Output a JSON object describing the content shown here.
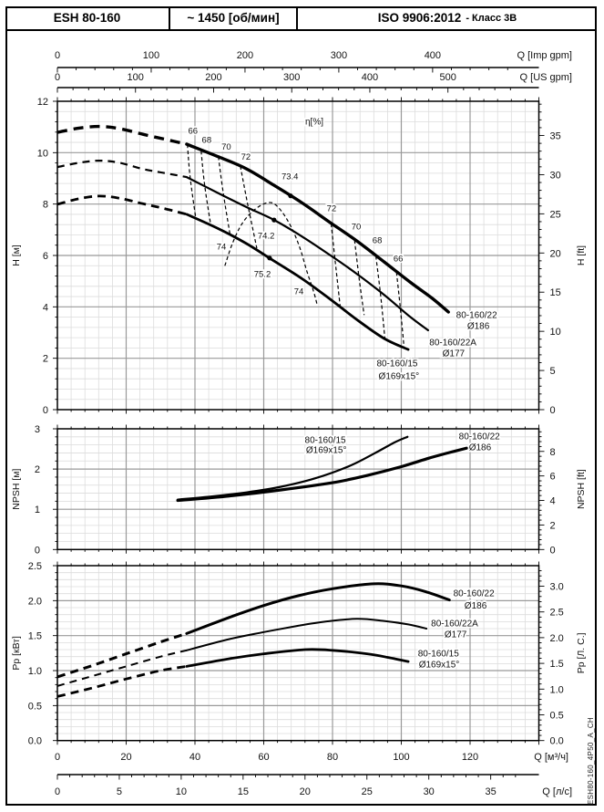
{
  "header": {
    "model": "ESH 80-160",
    "speed": "~ 1450 [об/мин]",
    "standard": "ISO 9906:2012",
    "standard_class": "- Класс 3В"
  },
  "side_text": "ESH80-160_4P50_A_CH",
  "colors": {
    "curve": "#000000",
    "grid_minor": "#dcdcdc",
    "grid_major": "#999999",
    "border": "#000000",
    "text": "#111111",
    "background": "#ffffff"
  },
  "axes": {
    "top_imp": {
      "title": "Q [Imp gpm]",
      "labels": [
        "0",
        "100",
        "200",
        "300",
        "400"
      ]
    },
    "top_us": {
      "title": "Q [US gpm]",
      "labels": [
        "0",
        "100",
        "200",
        "300",
        "400",
        "500"
      ]
    },
    "bottom_m3h": {
      "title": "Q [м³/ч]",
      "labels": [
        "0",
        "20",
        "40",
        "60",
        "80",
        "100",
        "120"
      ]
    },
    "bottom_ls": {
      "title": "Q [л/с]",
      "labels": [
        "0",
        "5",
        "10",
        "15",
        "20",
        "25",
        "30",
        "35"
      ]
    }
  },
  "chart_data": [
    {
      "type": "line",
      "name": "head-curve-chart",
      "ylabel_left": "H [м]",
      "ylabel_right": "H [ft]",
      "xlabel": "Q [м³/ч]",
      "xlim": [
        0,
        140
      ],
      "ylim": [
        0,
        12
      ],
      "yticks_left": [
        "0",
        "2",
        "4",
        "6",
        "8",
        "10",
        "12"
      ],
      "yticks_right": [
        "0",
        "5",
        "10",
        "15",
        "20",
        "25",
        "30",
        "35"
      ],
      "right_factor": 0.3048,
      "eta_axis_label": {
        "text": "η[%]",
        "q": 74.7,
        "v": 11.22
      },
      "series": [
        {
          "name": "80-160/22 Ø186",
          "width": 3.4,
          "dash": "11 7",
          "dashed": [
            [
              0,
              10.79
            ],
            [
              6,
              10.95
            ],
            [
              12,
              11.02
            ],
            [
              18,
              10.94
            ],
            [
              25,
              10.71
            ],
            [
              31,
              10.53
            ],
            [
              37.6,
              10.33
            ]
          ],
          "solid": [
            [
              37.6,
              10.33
            ],
            [
              47,
              9.83
            ],
            [
              55,
              9.37
            ],
            [
              63,
              8.73
            ],
            [
              71,
              8.06
            ],
            [
              79,
              7.31
            ],
            [
              87,
              6.57
            ],
            [
              95,
              5.75
            ],
            [
              102.5,
              4.97
            ],
            [
              109,
              4.33
            ],
            [
              113.7,
              3.8
            ]
          ]
        },
        {
          "name": "80-160/22A Ø177",
          "width": 2.2,
          "dash": "8 6",
          "dashed": [
            [
              0,
              9.44
            ],
            [
              6,
              9.6
            ],
            [
              12,
              9.69
            ],
            [
              18,
              9.61
            ],
            [
              25,
              9.36
            ],
            [
              31,
              9.21
            ],
            [
              37.6,
              9.05
            ]
          ],
          "solid": [
            [
              37.6,
              9.05
            ],
            [
              47,
              8.41
            ],
            [
              55,
              7.88
            ],
            [
              63,
              7.38
            ],
            [
              71,
              6.75
            ],
            [
              79,
              6.04
            ],
            [
              87,
              5.29
            ],
            [
              95,
              4.47
            ],
            [
              102.5,
              3.62
            ],
            [
              107.8,
              3.09
            ]
          ]
        },
        {
          "name": "80-160/15 Ø169x15°",
          "width": 2.8,
          "dash": "9 6",
          "dashed": [
            [
              0,
              7.99
            ],
            [
              6,
              8.2
            ],
            [
              12,
              8.31
            ],
            [
              18,
              8.23
            ],
            [
              25,
              8.01
            ],
            [
              31,
              7.83
            ],
            [
              37.6,
              7.6
            ]
          ],
          "solid": [
            [
              37.6,
              7.6
            ],
            [
              47,
              7.03
            ],
            [
              55,
              6.46
            ],
            [
              62,
              5.87
            ],
            [
              71,
              5.11
            ],
            [
              79,
              4.33
            ],
            [
              87,
              3.51
            ],
            [
              95,
              2.77
            ],
            [
              102,
              2.34
            ]
          ]
        }
      ],
      "bep_dots": [
        [
          67.8,
          8.32
        ],
        [
          63,
          7.38
        ],
        [
          61.7,
          5.9
        ]
      ],
      "iso_efficiency_lines": [
        [
          [
            37.8,
            10.32
          ],
          [
            38.6,
            9.05
          ],
          [
            40.2,
            7.48
          ]
        ],
        [
          [
            41.8,
            10.07
          ],
          [
            42.8,
            8.75
          ],
          [
            44.6,
            7.18
          ]
        ],
        [
          [
            46.8,
            9.85
          ],
          [
            48.2,
            8.45
          ],
          [
            50.2,
            6.82
          ]
        ],
        [
          [
            53.2,
            9.48
          ],
          [
            55.4,
            7.95
          ],
          [
            58.0,
            6.28
          ]
        ],
        [
          [
            79.6,
            7.24
          ],
          [
            80.8,
            5.75
          ],
          [
            82.2,
            4.05
          ]
        ],
        [
          [
            86.4,
            6.6
          ],
          [
            87.8,
            5.05
          ],
          [
            89.2,
            3.68
          ]
        ],
        [
          [
            92.6,
            5.98
          ],
          [
            94.0,
            4.45
          ],
          [
            95.2,
            2.8
          ]
        ],
        [
          [
            98.6,
            5.35
          ],
          [
            99.8,
            3.85
          ],
          [
            100.8,
            2.42
          ]
        ]
      ],
      "efficiency_contour_74": [
        [
          48.7,
          5.6
        ],
        [
          51,
          6.5
        ],
        [
          54,
          7.3
        ],
        [
          58,
          7.85
        ],
        [
          62,
          8.06
        ],
        [
          65,
          7.75
        ],
        [
          68,
          7.1
        ],
        [
          70.5,
          6.3
        ],
        [
          72.5,
          5.4
        ],
        [
          74.5,
          4.6
        ],
        [
          75.5,
          4.1
        ]
      ],
      "efficiency_labels": [
        {
          "text": "66",
          "q": 39.4,
          "v": 10.86
        },
        {
          "text": "68",
          "q": 43.4,
          "v": 10.51
        },
        {
          "text": "70",
          "q": 49.1,
          "v": 10.24
        },
        {
          "text": "72",
          "q": 54.8,
          "v": 9.86
        },
        {
          "text": "73.4",
          "q": 67.6,
          "v": 9.09
        },
        {
          "text": "72",
          "q": 79.7,
          "v": 7.85
        },
        {
          "text": "70",
          "q": 86.9,
          "v": 7.14
        },
        {
          "text": "68",
          "q": 93.0,
          "v": 6.6
        },
        {
          "text": "66",
          "q": 99.1,
          "v": 5.89
        },
        {
          "text": "74",
          "q": 47.7,
          "v": 6.35
        },
        {
          "text": "74.2",
          "q": 60.7,
          "v": 6.78
        },
        {
          "text": "75.2",
          "q": 59.6,
          "v": 5.29
        },
        {
          "text": "74",
          "q": 70.2,
          "v": 4.62
        }
      ],
      "curve_labels": [
        {
          "text": "80-160/22",
          "q": 121.9,
          "v": 3.69
        },
        {
          "text": "Ø186",
          "q": 122.4,
          "v": 3.27
        },
        {
          "text": "80-160/22A",
          "q": 115.0,
          "v": 2.63
        },
        {
          "text": "Ø177",
          "q": 115.2,
          "v": 2.2
        },
        {
          "text": "80-160/15",
          "q": 98.8,
          "v": 1.81
        },
        {
          "text": "Ø169x15°",
          "q": 99.3,
          "v": 1.31
        }
      ]
    },
    {
      "type": "line",
      "name": "npsh-chart",
      "ylabel_left": "NPSH [м]",
      "ylabel_right": "NPSH [ft]",
      "xlabel": "Q [м³/ч]",
      "xlim": [
        0,
        140
      ],
      "ylim": [
        0,
        3
      ],
      "yticks_left": [
        "0",
        "1",
        "2",
        "3"
      ],
      "yticks_right": [
        "0",
        "2",
        "4",
        "6",
        "8"
      ],
      "right_factor": 0.3048,
      "series": [
        {
          "name": "80-160/15 Ø169x15°",
          "width": 2.2,
          "dash": null,
          "dashed": [],
          "solid": [
            [
              35,
              1.24
            ],
            [
              45,
              1.32
            ],
            [
              55,
              1.42
            ],
            [
              65,
              1.56
            ],
            [
              75,
              1.77
            ],
            [
              85,
              2.08
            ],
            [
              92,
              2.38
            ],
            [
              98,
              2.66
            ],
            [
              101.8,
              2.8
            ]
          ]
        },
        {
          "name": "80-160/22 Ø186",
          "width": 3.2,
          "dash": null,
          "dashed": [],
          "solid": [
            [
              35,
              1.22
            ],
            [
              50,
              1.33
            ],
            [
              65,
              1.48
            ],
            [
              80,
              1.66
            ],
            [
              90,
              1.84
            ],
            [
              100,
              2.06
            ],
            [
              108,
              2.27
            ],
            [
              114,
              2.41
            ],
            [
              119,
              2.52
            ]
          ]
        }
      ],
      "bep_dots": [],
      "iso_efficiency_lines": [],
      "efficiency_contour_74": [],
      "efficiency_labels": [],
      "curve_labels": [
        {
          "text": "80-160/15",
          "q": 77.9,
          "v": 2.73
        },
        {
          "text": "Ø169x15°",
          "q": 78.2,
          "v": 2.48
        },
        {
          "text": "80-160/22",
          "q": 122.7,
          "v": 2.82
        },
        {
          "text": "Ø186",
          "q": 122.9,
          "v": 2.55
        }
      ]
    },
    {
      "type": "line",
      "name": "power-chart",
      "ylabel_left": "Pp [кВт]",
      "ylabel_right": "Pp [Л. С.]",
      "xlabel": "Q [м³/ч]",
      "xlim": [
        0,
        140
      ],
      "ylim": [
        0,
        2.5
      ],
      "yticks_left": [
        "0.0",
        "0.5",
        "1.0",
        "1.5",
        "2.0",
        "2.5"
      ],
      "yticks_right": [
        "0.0",
        "0.5",
        "1.0",
        "1.5",
        "2.0",
        "2.5",
        "3.0"
      ],
      "right_factor": 0.7355,
      "series": [
        {
          "name": "80-160/22 Ø186",
          "width": 3.0,
          "dash": "9 6",
          "dashed": [
            [
              0,
              0.91
            ],
            [
              10,
              1.07
            ],
            [
              20,
              1.24
            ],
            [
              30,
              1.41
            ],
            [
              37.6,
              1.53
            ]
          ],
          "solid": [
            [
              37.6,
              1.53
            ],
            [
              50,
              1.76
            ],
            [
              60,
              1.93
            ],
            [
              70,
              2.07
            ],
            [
              80,
              2.17
            ],
            [
              92,
              2.24
            ],
            [
              100,
              2.21
            ],
            [
              107,
              2.13
            ],
            [
              114,
              2.01
            ]
          ]
        },
        {
          "name": "80-160/22A Ø177",
          "width": 2.0,
          "dash": "8 6",
          "dashed": [
            [
              0,
              0.78
            ],
            [
              10,
              0.92
            ],
            [
              20,
              1.06
            ],
            [
              30,
              1.2
            ],
            [
              37.6,
              1.29
            ]
          ],
          "solid": [
            [
              37.6,
              1.29
            ],
            [
              50,
              1.45
            ],
            [
              60,
              1.55
            ],
            [
              70,
              1.64
            ],
            [
              78,
              1.7
            ],
            [
              87,
              1.74
            ],
            [
              95,
              1.71
            ],
            [
              102,
              1.66
            ],
            [
              107.3,
              1.6
            ]
          ]
        },
        {
          "name": "80-160/15 Ø169x15°",
          "width": 2.8,
          "dash": "9 6",
          "dashed": [
            [
              0,
              0.63
            ],
            [
              10,
              0.75
            ],
            [
              20,
              0.88
            ],
            [
              30,
              1.0
            ],
            [
              37.6,
              1.06
            ]
          ],
          "solid": [
            [
              37.6,
              1.06
            ],
            [
              50,
              1.17
            ],
            [
              60,
              1.24
            ],
            [
              72,
              1.3
            ],
            [
              80,
              1.29
            ],
            [
              90,
              1.24
            ],
            [
              96,
              1.19
            ],
            [
              102,
              1.13
            ]
          ]
        }
      ],
      "bep_dots": [],
      "iso_efficiency_lines": [],
      "efficiency_contour_74": [],
      "efficiency_labels": [],
      "curve_labels": [
        {
          "text": "80-160/22",
          "q": 121.1,
          "v": 2.11
        },
        {
          "text": "Ø186",
          "q": 121.6,
          "v": 1.93
        },
        {
          "text": "80-160/22A",
          "q": 115.5,
          "v": 1.68
        },
        {
          "text": "Ø177",
          "q": 115.8,
          "v": 1.52
        },
        {
          "text": "80-160/15",
          "q": 110.8,
          "v": 1.25
        },
        {
          "text": "Ø169x15°",
          "q": 111.0,
          "v": 1.09
        }
      ]
    }
  ]
}
